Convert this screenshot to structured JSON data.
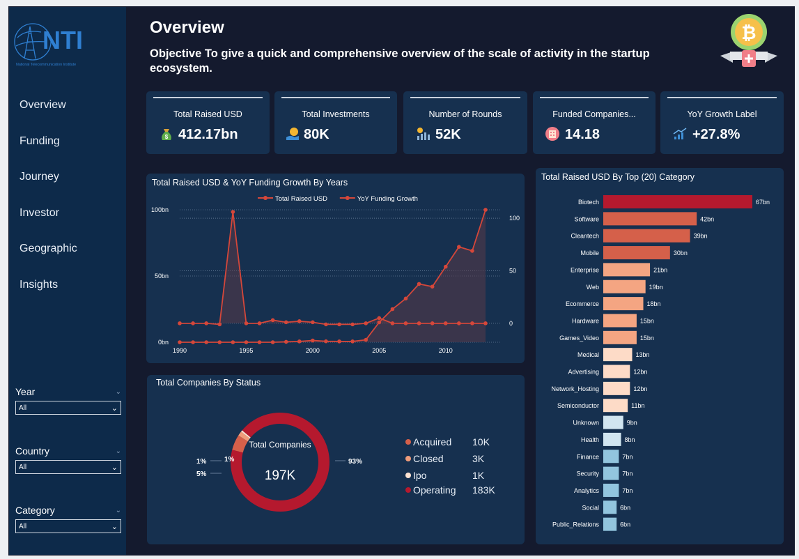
{
  "sidebar": {
    "logo_text": "NTI",
    "logo_subtitle": "National Telecommunication Institute",
    "nav": [
      "Overview",
      "Funding",
      "Journey",
      "Investor",
      "Geographic",
      "Insights"
    ],
    "slicers": [
      {
        "title": "Year",
        "value": "All"
      },
      {
        "title": "Country",
        "value": "All"
      },
      {
        "title": "Category",
        "value": "All"
      }
    ]
  },
  "header": {
    "title": "Overview",
    "objective": "Objective To give a quick and comprehensive overview of the scale of activity in the startup ecosystem."
  },
  "kpis": [
    {
      "label": "Total Raised USD",
      "value": "412.17bn",
      "icon": "money-bag-icon"
    },
    {
      "label": "Total Investments",
      "value": "80K",
      "icon": "coin-hand-icon"
    },
    {
      "label": "Number of Rounds",
      "value": "52K",
      "icon": "chart-coins-icon"
    },
    {
      "label": "Funded Companies...",
      "value": "14.18",
      "icon": "building-icon"
    },
    {
      "label": "YoY Growth Label",
      "value": "+27.8%",
      "icon": "growth-bars-icon"
    }
  ],
  "colors": {
    "accent_red": "#b5192e",
    "line_red": "#d5473a",
    "panel": "#16304f",
    "background": "#141a2e"
  },
  "chart_data": [
    {
      "type": "line",
      "title": "Total Raised USD & YoY Funding Growth By Years",
      "x": [
        1990,
        1991,
        1992,
        1993,
        1994,
        1995,
        1996,
        1997,
        1998,
        1999,
        2000,
        2001,
        2002,
        2003,
        2004,
        2005,
        2006,
        2007,
        2008,
        2009,
        2010,
        2011,
        2012,
        2013
      ],
      "x_ticks": [
        "1990",
        "1995",
        "2000",
        "2005",
        "2010"
      ],
      "y_left_ticks": [
        "0bn",
        "50bn",
        "100bn"
      ],
      "y_right_ticks": [
        "0",
        "50",
        "100"
      ],
      "ylim_left": [
        0,
        100
      ],
      "ylim_right": [
        -18,
        108
      ],
      "series": [
        {
          "name": "Total Raised USD",
          "axis": "left",
          "values": [
            0,
            0,
            0,
            0,
            0,
            0,
            0,
            0,
            0.3,
            0.6,
            1.3,
            0.7,
            0.6,
            0.6,
            1.8,
            15,
            25,
            33,
            44,
            42,
            57,
            72,
            69,
            100
          ]
        },
        {
          "name": "YoY Funding Growth",
          "axis": "right",
          "values": [
            0,
            0,
            0,
            -1,
            106,
            0,
            0,
            3,
            1,
            2,
            1,
            -1,
            -1,
            -1,
            0,
            5,
            0,
            0,
            0,
            0,
            0,
            0,
            0,
            0
          ]
        }
      ],
      "grid": true,
      "legend": "top"
    },
    {
      "type": "pie",
      "title": "Total Companies By Status",
      "center_label": "Total Companies",
      "center_value": "197K",
      "slices": [
        {
          "name": "Acquired",
          "value": 10,
          "label": "10K",
          "color": "#d5604a"
        },
        {
          "name": "Closed",
          "value": 3,
          "label": "3K",
          "color": "#ef9c7b"
        },
        {
          "name": "Ipo",
          "value": 1,
          "label": "1K",
          "color": "#fde3d2"
        },
        {
          "name": "Operating",
          "value": 183,
          "label": "183K",
          "color": "#b5192e"
        }
      ],
      "percent_labels": [
        "1%",
        "1%",
        "5%",
        "93%"
      ]
    },
    {
      "type": "bar",
      "title": "Total Raised USD By Top (20) Category",
      "categories": [
        "Biotech",
        "Software",
        "Cleantech",
        "Mobile",
        "Enterprise",
        "Web",
        "Ecommerce",
        "Hardware",
        "Games_Video",
        "Medical",
        "Advertising",
        "Network_Hosting",
        "Semiconductor",
        "Unknown",
        "Health",
        "Finance",
        "Security",
        "Analytics",
        "Social",
        "Public_Relations"
      ],
      "values": [
        67,
        42,
        39,
        30,
        21,
        19,
        18,
        15,
        15,
        13,
        12,
        12,
        11,
        9,
        8,
        7,
        7,
        7,
        6,
        6
      ],
      "labels": [
        "67bn",
        "42bn",
        "39bn",
        "30bn",
        "21bn",
        "19bn",
        "18bn",
        "15bn",
        "15bn",
        "13bn",
        "12bn",
        "12bn",
        "11bn",
        "9bn",
        "8bn",
        "7bn",
        "7bn",
        "7bn",
        "6bn",
        "6bn"
      ],
      "colors": [
        "#b5192e",
        "#d5604a",
        "#d5604a",
        "#d5604a",
        "#f4a582",
        "#f4a582",
        "#f4a582",
        "#f4a582",
        "#f4a582",
        "#fddbc7",
        "#fddbc7",
        "#fddbc7",
        "#fddbc7",
        "#d1e5f0",
        "#d1e5f0",
        "#92c5de",
        "#92c5de",
        "#92c5de",
        "#92c5de",
        "#92c5de"
      ]
    }
  ]
}
